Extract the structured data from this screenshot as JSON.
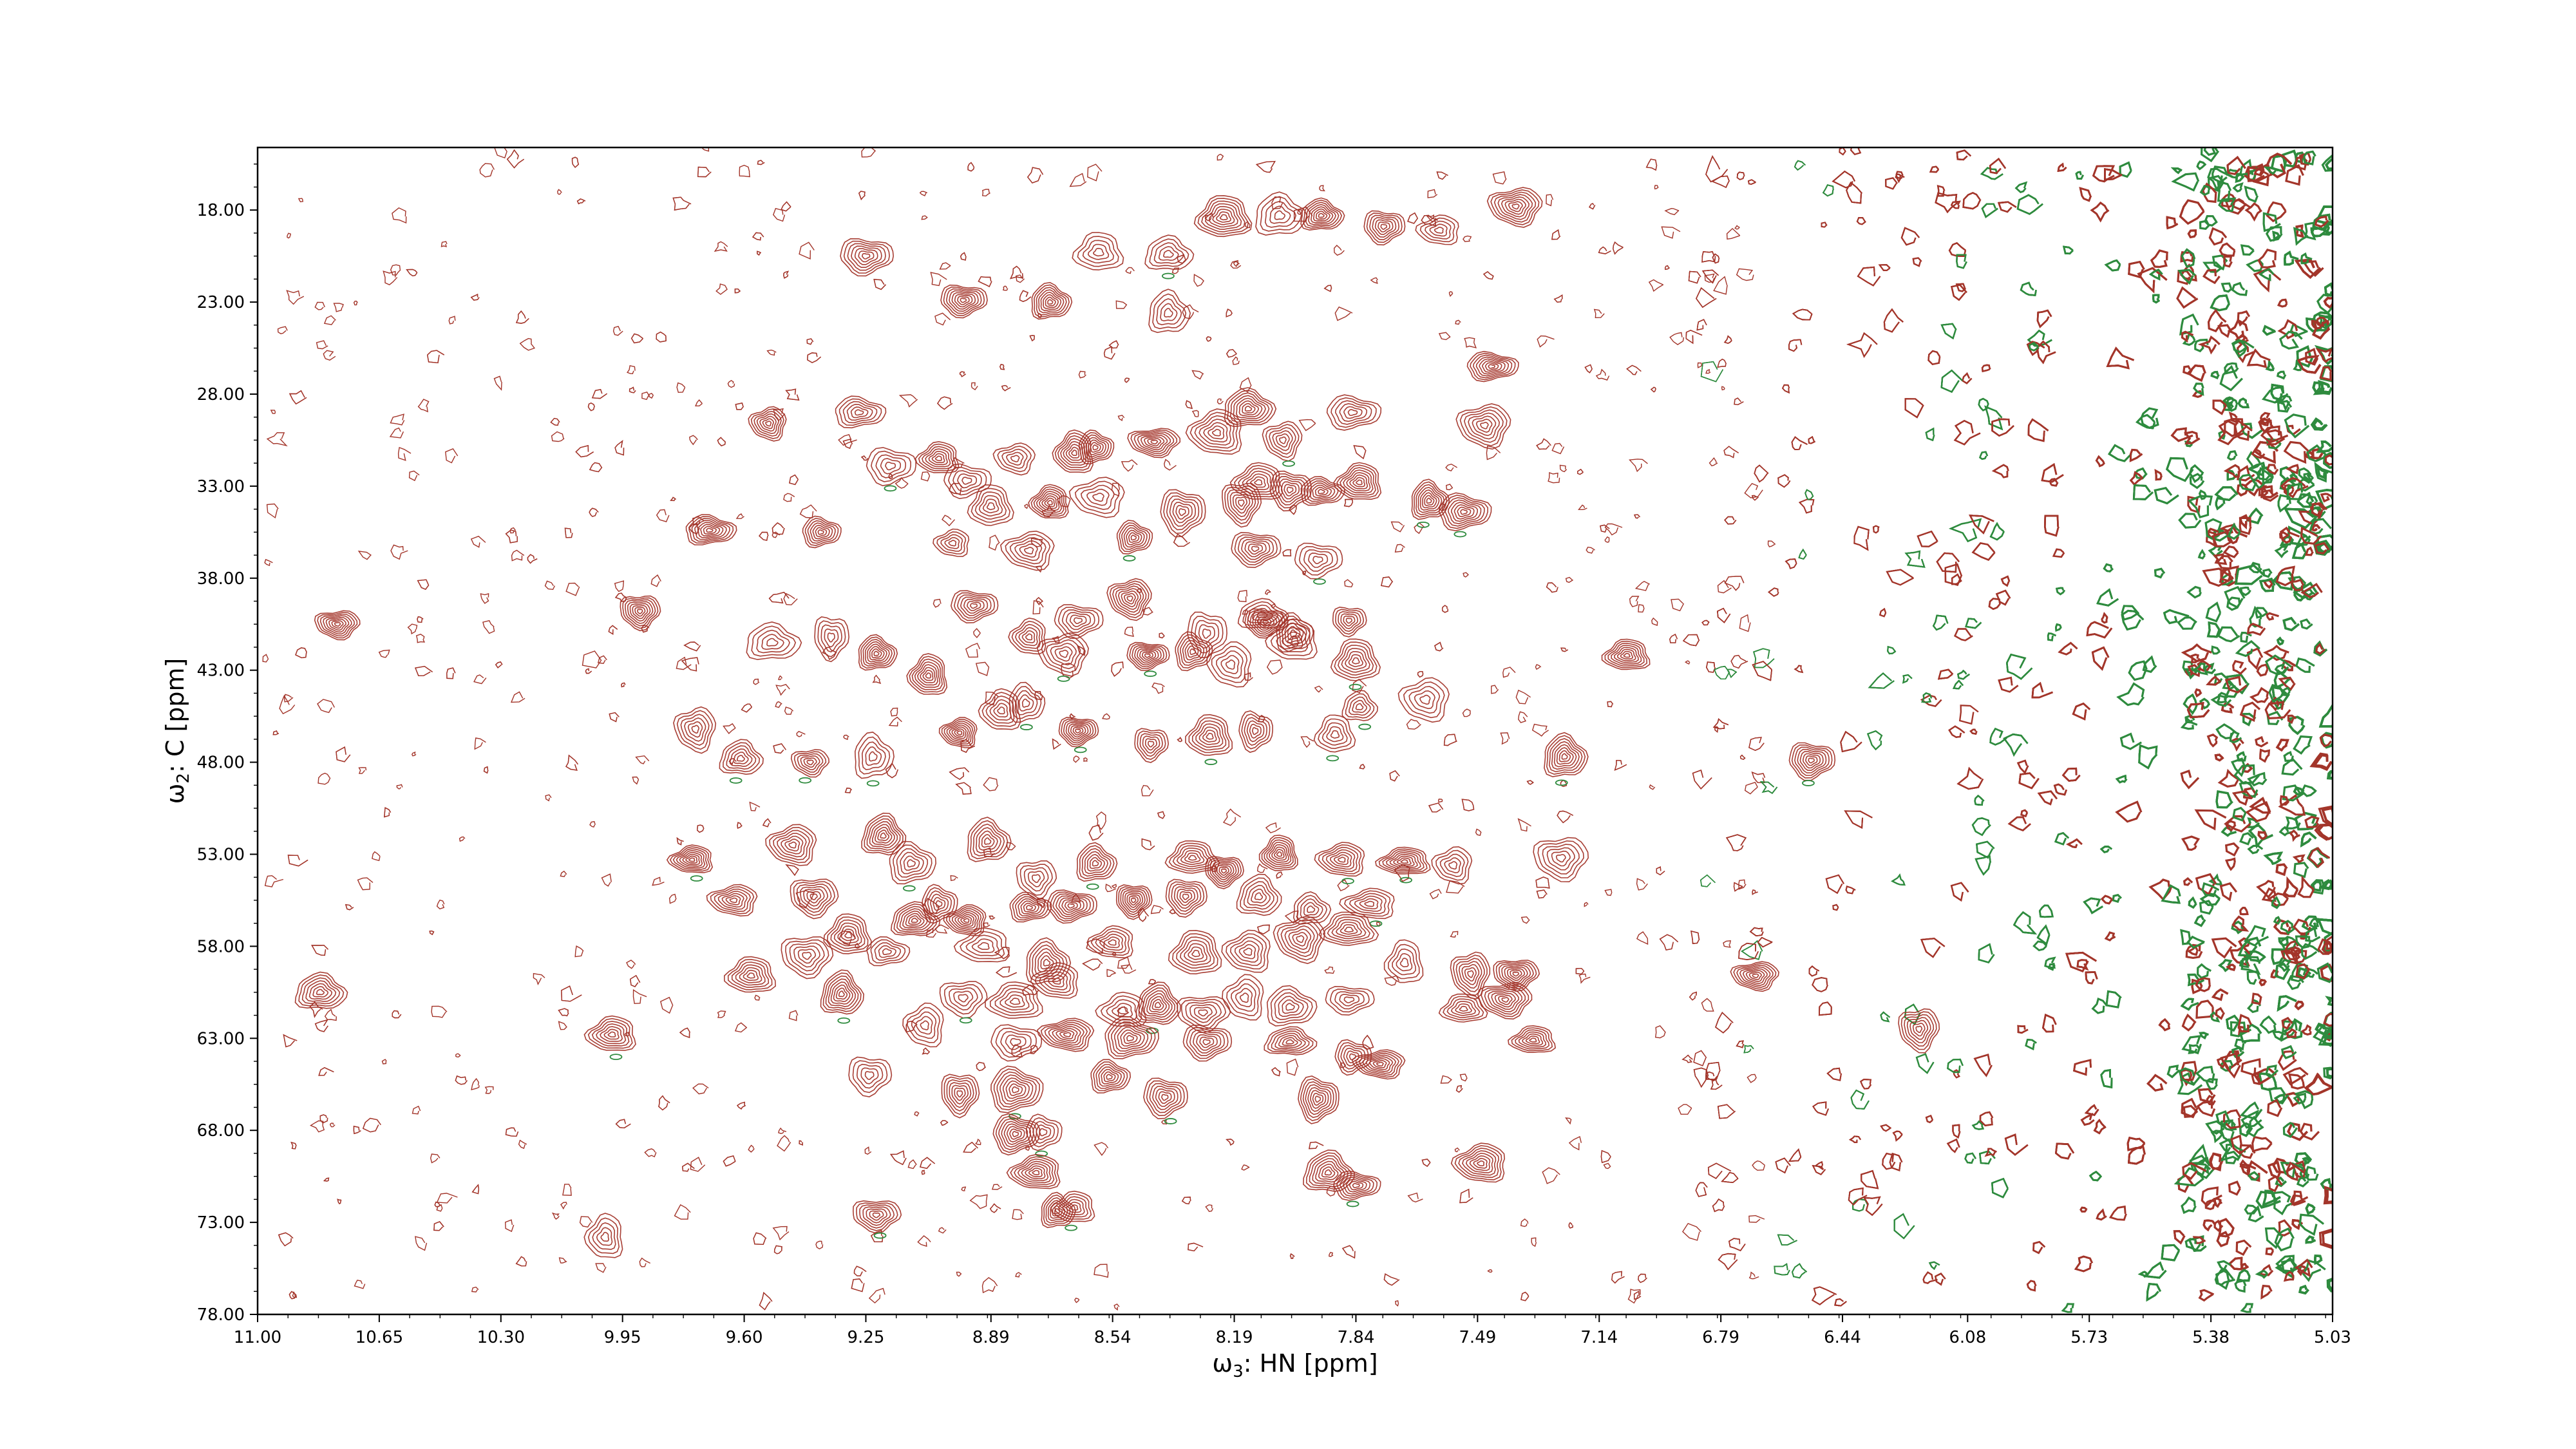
{
  "chart_data": {
    "type": "contour",
    "xlabel": {
      "prefix": "ω",
      "sub": "3",
      "text": ": HN [ppm]"
    },
    "ylabel": {
      "prefix": "ω",
      "sub": "2",
      "text": ": C [ppm]"
    },
    "xlim": [
      11.0,
      5.03
    ],
    "ylim": [
      14.6,
      78.0
    ],
    "x_ticks": [
      11.0,
      10.65,
      10.3,
      9.95,
      9.6,
      9.25,
      8.89,
      8.54,
      8.19,
      7.84,
      7.49,
      7.14,
      6.79,
      6.44,
      6.08,
      5.73,
      5.38,
      5.03
    ],
    "x_tick_labels": [
      "11.00",
      "10.65",
      "10.30",
      "9.95",
      "9.60",
      "9.25",
      "8.89",
      "8.54",
      "8.19",
      "7.84",
      "7.49",
      "7.14",
      "6.79",
      "6.44",
      "6.08",
      "5.73",
      "5.38",
      "5.03"
    ],
    "y_ticks": [
      18.0,
      23.0,
      28.0,
      33.0,
      38.0,
      43.0,
      48.0,
      53.0,
      58.0,
      63.0,
      68.0,
      73.0,
      78.0
    ],
    "y_tick_labels": [
      "18.00",
      "23.00",
      "28.00",
      "33.00",
      "38.00",
      "43.00",
      "48.00",
      "53.00",
      "58.00",
      "63.00",
      "68.00",
      "73.00",
      "78.00"
    ],
    "contour_colors": {
      "positive": "#a3352a",
      "negative": "#2e8b3e"
    },
    "peaks": [
      [
        9.25,
        20.5
      ],
      [
        8.97,
        22.9
      ],
      [
        8.72,
        23.0
      ],
      [
        8.38,
        20.4
      ],
      [
        8.58,
        20.3
      ],
      [
        8.22,
        18.4
      ],
      [
        8.06,
        18.3
      ],
      [
        7.94,
        18.3
      ],
      [
        7.76,
        18.9
      ],
      [
        7.6,
        19.1
      ],
      [
        7.38,
        17.8
      ],
      [
        8.38,
        23.6
      ],
      [
        7.45,
        26.5
      ],
      [
        8.15,
        28.8
      ],
      [
        8.42,
        30.6
      ],
      [
        8.59,
        30.9
      ],
      [
        8.24,
        30.1
      ],
      [
        8.05,
        30.5
      ],
      [
        7.85,
        29.0
      ],
      [
        7.47,
        29.7
      ],
      [
        9.53,
        29.6
      ],
      [
        9.18,
        31.9
      ],
      [
        8.82,
        31.5
      ],
      [
        8.65,
        31.2
      ],
      [
        8.96,
        32.7
      ],
      [
        8.89,
        34.1
      ],
      [
        8.72,
        33.9
      ],
      [
        8.58,
        33.6
      ],
      [
        9.27,
        29.0
      ],
      [
        9.04,
        31.5
      ],
      [
        8.12,
        32.8
      ],
      [
        8.03,
        33.2
      ],
      [
        7.94,
        33.3
      ],
      [
        7.83,
        32.8
      ],
      [
        7.63,
        33.8
      ],
      [
        7.53,
        34.4
      ],
      [
        8.34,
        34.4
      ],
      [
        8.17,
        33.9
      ],
      [
        9.7,
        35.4
      ],
      [
        9.38,
        35.5
      ],
      [
        9.0,
        36.1
      ],
      [
        8.78,
        36.5
      ],
      [
        8.48,
        35.8
      ],
      [
        8.13,
        36.4
      ],
      [
        7.95,
        37.0
      ],
      [
        8.11,
        40.0
      ],
      [
        9.9,
        39.8
      ],
      [
        9.52,
        41.5
      ],
      [
        8.49,
        39.1
      ],
      [
        8.64,
        40.3
      ],
      [
        8.31,
        42.0
      ],
      [
        8.27,
        41.0
      ],
      [
        8.1,
        40.4
      ],
      [
        8.02,
        41.4
      ],
      [
        7.86,
        40.3
      ],
      [
        7.84,
        42.5
      ],
      [
        9.35,
        41.2
      ],
      [
        9.22,
        42.1
      ],
      [
        8.94,
        39.5
      ],
      [
        8.78,
        41.2
      ],
      [
        8.68,
        42.1
      ],
      [
        8.44,
        42.2
      ],
      [
        8.2,
        42.7
      ],
      [
        8.02,
        41.0
      ],
      [
        10.77,
        40.5
      ],
      [
        9.07,
        43.3
      ],
      [
        8.86,
        45.2
      ],
      [
        8.64,
        46.3
      ],
      [
        8.79,
        44.8
      ],
      [
        8.43,
        47.0
      ],
      [
        8.26,
        46.6
      ],
      [
        8.13,
        46.3
      ],
      [
        7.9,
        46.5
      ],
      [
        7.83,
        45.0
      ],
      [
        7.64,
        44.6
      ],
      [
        7.24,
        47.7
      ],
      [
        9.74,
        46.2
      ],
      [
        9.61,
        47.8
      ],
      [
        9.41,
        48.0
      ],
      [
        9.23,
        47.7
      ],
      [
        8.98,
        46.4
      ],
      [
        7.06,
        42.2
      ],
      [
        6.53,
        47.9
      ],
      [
        9.75,
        53.3
      ],
      [
        9.46,
        52.5
      ],
      [
        9.2,
        52.0
      ],
      [
        9.12,
        53.5
      ],
      [
        8.9,
        52.3
      ],
      [
        8.76,
        54.3
      ],
      [
        8.59,
        53.5
      ],
      [
        8.31,
        53.2
      ],
      [
        8.22,
        53.9
      ],
      [
        8.06,
        53.0
      ],
      [
        7.88,
        53.3
      ],
      [
        7.7,
        53.4
      ],
      [
        7.56,
        53.6
      ],
      [
        9.63,
        55.5
      ],
      [
        9.4,
        55.3
      ],
      [
        9.04,
        55.7
      ],
      [
        8.96,
        56.6
      ],
      [
        8.78,
        55.9
      ],
      [
        8.66,
        55.8
      ],
      [
        8.48,
        55.5
      ],
      [
        8.33,
        55.3
      ],
      [
        8.12,
        55.3
      ],
      [
        7.97,
        56.0
      ],
      [
        7.8,
        55.7
      ],
      [
        7.25,
        53.2
      ],
      [
        9.42,
        58.5
      ],
      [
        9.3,
        57.4
      ],
      [
        9.11,
        56.6
      ],
      [
        9.19,
        58.3
      ],
      [
        8.91,
        58.0
      ],
      [
        8.73,
        58.9
      ],
      [
        8.54,
        57.8
      ],
      [
        8.3,
        58.4
      ],
      [
        8.15,
        58.3
      ],
      [
        8.0,
        57.6
      ],
      [
        7.86,
        57.1
      ],
      [
        7.7,
        58.9
      ],
      [
        7.51,
        59.5
      ],
      [
        7.38,
        59.5
      ],
      [
        10.82,
        60.5
      ],
      [
        9.58,
        59.6
      ],
      [
        9.32,
        60.6
      ],
      [
        8.97,
        60.8
      ],
      [
        8.82,
        61.0
      ],
      [
        8.7,
        59.9
      ],
      [
        8.51,
        61.5
      ],
      [
        8.41,
        61.2
      ],
      [
        8.28,
        61.6
      ],
      [
        8.16,
        60.8
      ],
      [
        8.03,
        61.3
      ],
      [
        7.86,
        60.9
      ],
      [
        7.53,
        61.4
      ],
      [
        7.41,
        60.9
      ],
      [
        9.98,
        62.8
      ],
      [
        9.08,
        62.3
      ],
      [
        8.82,
        63.2
      ],
      [
        8.67,
        62.8
      ],
      [
        8.49,
        63.0
      ],
      [
        8.27,
        63.2
      ],
      [
        8.03,
        63.2
      ],
      [
        7.85,
        64.0
      ],
      [
        7.33,
        63.1
      ],
      [
        6.22,
        62.5
      ],
      [
        9.24,
        65.0
      ],
      [
        8.98,
        66.0
      ],
      [
        8.82,
        65.8
      ],
      [
        8.74,
        68.1
      ],
      [
        8.55,
        65.1
      ],
      [
        8.39,
        66.2
      ],
      [
        7.95,
        66.3
      ],
      [
        7.77,
        64.4
      ],
      [
        7.48,
        69.8
      ],
      [
        6.69,
        59.6
      ],
      [
        8.82,
        68.2
      ],
      [
        8.76,
        70.3
      ],
      [
        8.65,
        72.2
      ],
      [
        8.7,
        72.4
      ],
      [
        9.22,
        72.6
      ],
      [
        10.0,
        73.8
      ],
      [
        7.84,
        71.0
      ],
      [
        7.92,
        70.3
      ]
    ]
  }
}
